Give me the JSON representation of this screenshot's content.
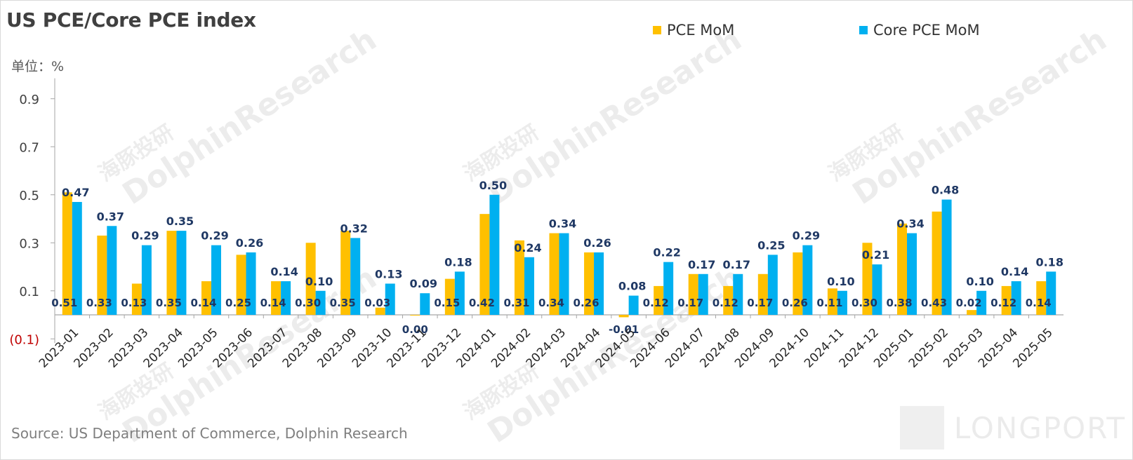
{
  "header": {
    "title": "US PCE/Core PCE index",
    "unit": "单位：%"
  },
  "footer": {
    "source": "Source: US Department of Commerce, Dolphin Research"
  },
  "watermark": {
    "cn": "海豚投研",
    "en": "DolphinResearch",
    "logo_text": "LONGPORT"
  },
  "colors": {
    "pce": "#FFC000",
    "core": "#00B0F0",
    "axis": "#a6a6a6",
    "label": "#1F3864",
    "negative_tick": "#C00000"
  },
  "chart_data": {
    "type": "bar",
    "title": "US PCE/Core PCE index",
    "ylabel": "单位：%",
    "ylim": [
      -0.1,
      1.0
    ],
    "yticks": [
      -0.1,
      0.1,
      0.3,
      0.5,
      0.7,
      0.9
    ],
    "ytick_labels": [
      "(0.1)",
      "0.1",
      "0.3",
      "0.5",
      "0.7",
      "0.9"
    ],
    "legend_position": "top",
    "grid": false,
    "categories": [
      "2023-01",
      "2023-02",
      "2023-03",
      "2023-04",
      "2023-05",
      "2023-06",
      "2023-07",
      "2023-08",
      "2023-09",
      "2023-10",
      "2023-11",
      "2023-12",
      "2024-01",
      "2024-02",
      "2024-03",
      "2024-04",
      "2024-05",
      "2024-06",
      "2024-07",
      "2024-08",
      "2024-09",
      "2024-10",
      "2024-11",
      "2024-12",
      "2025-01",
      "2025-02",
      "2025-03",
      "2025-04",
      "2025-05"
    ],
    "series": [
      {
        "name": "PCE MoM",
        "values": [
          0.51,
          0.33,
          0.13,
          0.35,
          0.14,
          0.25,
          0.14,
          0.3,
          0.35,
          0.03,
          0.0,
          0.15,
          0.42,
          0.31,
          0.34,
          0.26,
          -0.01,
          0.12,
          0.17,
          0.12,
          0.17,
          0.26,
          0.11,
          0.3,
          0.38,
          0.43,
          0.02,
          0.12,
          0.14
        ],
        "labels": [
          "0.51",
          "0.33",
          "0.13",
          "0.35",
          "0.14",
          "0.25",
          "0.14",
          "0.30",
          "0.35",
          "0.03",
          "0.00",
          "0.15",
          "0.42",
          "0.31",
          "0.34",
          "0.26",
          "-0.01",
          "0.12",
          "0.17",
          "0.12",
          "0.17",
          "0.26",
          "0.11",
          "0.30",
          "0.38",
          "0.43",
          "0.02",
          "0.12",
          "0.14"
        ]
      },
      {
        "name": "Core PCE MoM",
        "values": [
          0.47,
          0.37,
          0.29,
          0.35,
          0.29,
          0.26,
          0.14,
          0.1,
          0.32,
          0.13,
          0.09,
          0.18,
          0.5,
          0.24,
          0.34,
          0.26,
          0.08,
          0.22,
          0.17,
          0.17,
          0.25,
          0.29,
          0.1,
          0.21,
          0.34,
          0.48,
          0.1,
          0.14,
          0.18
        ],
        "labels": [
          "0.47",
          "0.37",
          "0.29",
          "0.35",
          "0.29",
          "0.26",
          "0.14",
          "0.10",
          "0.32",
          "0.13",
          "0.09",
          "0.18",
          "0.50",
          "0.24",
          "0.34",
          "0.26",
          "0.08",
          "0.22",
          "0.17",
          "0.17",
          "0.25",
          "0.29",
          "0.10",
          "0.21",
          "0.34",
          "0.48",
          "0.10",
          "0.14",
          "0.18"
        ]
      }
    ]
  }
}
